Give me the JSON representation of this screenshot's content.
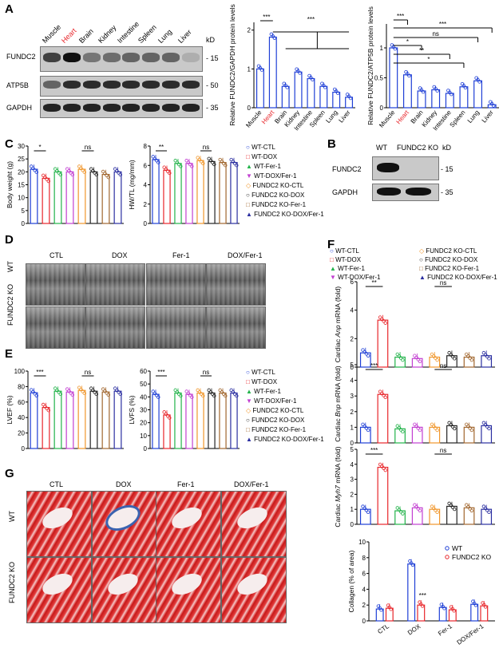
{
  "panels": {
    "A": "A",
    "B": "B",
    "C": "C",
    "D": "D",
    "E": "E",
    "F": "F",
    "G": "G"
  },
  "panelA": {
    "tissues": [
      "Muscle",
      "Heart",
      "Brain",
      "Kidney",
      "Intestine",
      "Spleen",
      "Lung",
      "Liver"
    ],
    "kd_header": "kD",
    "rows": [
      {
        "label": "FUNDC2",
        "kd": "- 15"
      },
      {
        "label": "ATP5B",
        "kd": "- 50"
      },
      {
        "label": "GAPDH",
        "kd": "- 35"
      }
    ]
  },
  "panelB": {
    "lanes": [
      "WT",
      "FUNDC2 KO"
    ],
    "kd_header": "kD",
    "rows": [
      {
        "label": "FUNDC2",
        "kd": "- 15"
      },
      {
        "label": "GAPDH",
        "kd": "- 35"
      }
    ]
  },
  "panelD": {
    "conditions": [
      "CTL",
      "DOX",
      "Fer-1",
      "DOX/Fer-1"
    ],
    "rows": [
      "WT",
      "FUNDC2 KO"
    ]
  },
  "panelG": {
    "conditions": [
      "CTL",
      "DOX",
      "Fer-1",
      "DOX/Fer-1"
    ],
    "rows": [
      "WT",
      "FUNDC2 KO"
    ]
  },
  "legend8": [
    "WT-CTL",
    "WT-DOX",
    "WT-Fer-1",
    "WT-DOX/Fer-1",
    "FUNDC2 KO-CTL",
    "FUNDC2 KO-DOX",
    "FUNDC2 KO-Fer-1",
    "FUNDC2 KO-DOX/Fer-1"
  ],
  "legendF": [
    "WT-CTL",
    "FUNDC2 KO-CTL",
    "WT-DOX",
    "FUNDC2 KO-DOX",
    "WT-Fer-1",
    "FUNDC2 KO-Fer-1",
    "WT-DOX/Fer-1",
    "FUNDC2 KO-DOX/Fer-1"
  ],
  "colors": {
    "WT-CTL": "#1f3fd6",
    "WT-DOX": "#e8262b",
    "WT-Fer-1": "#22b34a",
    "WT-DOX/Fer-1": "#c23fd1",
    "FUNDC2 KO-CTL": "#f0962b",
    "FUNDC2 KO-DOX": "#222222",
    "FUNDC2 KO-Fer-1": "#a1662e",
    "FUNDC2 KO-DOX/Fer-1": "#2a2ea0",
    "heart_label": "#e8262b",
    "collagen_wt": "#1f3fd6",
    "collagen_ko": "#e8262b"
  },
  "chart_data": [
    {
      "id": "A1",
      "type": "bar",
      "categories": [
        "Muscle",
        "Heart",
        "Brain",
        "Kidney",
        "Intestine",
        "Spleen",
        "Lung",
        "Liver"
      ],
      "values": [
        1.0,
        1.82,
        0.55,
        0.92,
        0.75,
        0.55,
        0.4,
        0.27
      ],
      "ylabel": "Relative FUNDC2/GAPDH protein levels",
      "ylim": [
        0,
        2.2
      ],
      "annotations": [
        "***",
        "***"
      ]
    },
    {
      "id": "A2",
      "type": "bar",
      "categories": [
        "Muscle",
        "Heart",
        "Brain",
        "Kidney",
        "Intestine",
        "Spleen",
        "Lung",
        "Liver"
      ],
      "values": [
        1.0,
        0.55,
        0.28,
        0.3,
        0.24,
        0.35,
        0.45,
        0.05
      ],
      "ylabel": "Relative FUNDC2/ATP5B protein levels",
      "ylim": [
        0,
        1.4
      ],
      "annotations": [
        "***",
        "***",
        "ns",
        "*",
        "**",
        "*"
      ]
    },
    {
      "id": "C1",
      "type": "bar",
      "values": [
        21,
        17.5,
        20,
        20,
        21,
        20,
        19,
        20
      ],
      "ylabel": "Body weight (g)",
      "ylim": [
        0,
        30
      ],
      "yticks": [
        0,
        5,
        10,
        15,
        20,
        25,
        30
      ],
      "annotations": [
        "*",
        "ns"
      ]
    },
    {
      "id": "C2",
      "type": "bar",
      "values": [
        6.6,
        5.5,
        6.2,
        6.2,
        6.5,
        6.4,
        6.3,
        6.3
      ],
      "ylabel": "HW/TL (mg/mm)",
      "ylim": [
        0,
        8
      ],
      "yticks": [
        0,
        2,
        4,
        6,
        8
      ],
      "annotations": [
        "**",
        "ns"
      ]
    },
    {
      "id": "E1",
      "type": "bar",
      "values": [
        72,
        53,
        74,
        73,
        75,
        74,
        73,
        74
      ],
      "ylabel": "LVEF (%)",
      "ylim": [
        0,
        100
      ],
      "yticks": [
        0,
        20,
        40,
        60,
        80,
        100
      ],
      "annotations": [
        "***",
        "ns"
      ]
    },
    {
      "id": "E2",
      "type": "bar",
      "values": [
        42,
        26,
        43,
        42,
        43,
        43,
        43,
        43
      ],
      "ylabel": "LVFS (%)",
      "ylim": [
        0,
        60
      ],
      "yticks": [
        0,
        10,
        20,
        30,
        40,
        50,
        60
      ],
      "annotations": [
        "***",
        "ns"
      ]
    },
    {
      "id": "F1",
      "type": "bar",
      "values": [
        1.0,
        3.3,
        0.7,
        0.6,
        0.7,
        0.8,
        0.7,
        0.8
      ],
      "ylabel_pre": "Cardiac ",
      "ylabel_gene": "Anp",
      "ylabel_post": " mRNA (fold)",
      "ylim": [
        0,
        6
      ],
      "yticks": [
        0,
        2,
        4,
        6
      ],
      "annotations": [
        "**",
        "ns"
      ]
    },
    {
      "id": "F2",
      "type": "bar",
      "values": [
        1.0,
        3.1,
        0.9,
        1.0,
        1.0,
        1.1,
        1.0,
        1.1
      ],
      "ylabel_pre": "Cardiac ",
      "ylabel_gene": "Bnp",
      "ylabel_post": " mRNA (fold)",
      "ylim": [
        0,
        5
      ],
      "yticks": [
        0,
        1,
        2,
        3,
        4,
        5
      ],
      "annotations": [
        "***",
        "ns"
      ]
    },
    {
      "id": "F3",
      "type": "bar",
      "values": [
        1.0,
        3.8,
        0.9,
        1.1,
        1.0,
        1.2,
        1.1,
        1.0
      ],
      "ylabel_pre": "Cardiac ",
      "ylabel_gene": "Myh7",
      "ylabel_post": " mRNA (fold)",
      "ylim": [
        0,
        5
      ],
      "yticks": [
        0,
        1,
        2,
        3,
        4,
        5
      ],
      "annotations": [
        "***",
        "ns"
      ]
    },
    {
      "id": "G1",
      "type": "bar",
      "categories": [
        "CTL",
        "DOX",
        "Fer-1",
        "DOX/Fer-1"
      ],
      "series": [
        {
          "name": "WT",
          "values": [
            1.5,
            7.2,
            1.7,
            2.1
          ]
        },
        {
          "name": "FUNDC2 KO",
          "values": [
            1.6,
            2.0,
            1.4,
            1.9
          ]
        }
      ],
      "ylabel": "Collagen (% of area)",
      "ylim": [
        0,
        10
      ],
      "yticks": [
        0,
        2,
        4,
        6,
        8,
        10
      ],
      "annotations": [
        "***"
      ]
    }
  ]
}
